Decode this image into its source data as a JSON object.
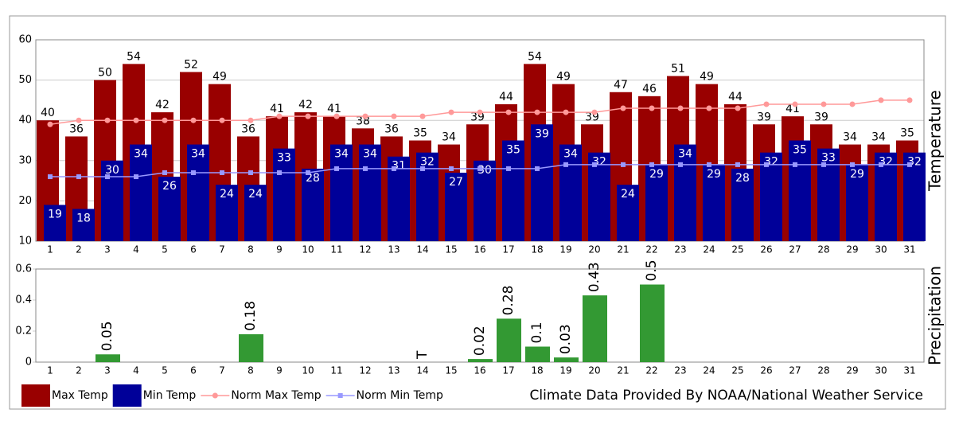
{
  "footer": "Climate Data Provided By NOAA/National Weather Service",
  "chart_data": [
    {
      "type": "bar",
      "y_label": "Temperature",
      "legend": "bottom",
      "grid": true,
      "categories": [
        1,
        2,
        3,
        4,
        5,
        6,
        7,
        8,
        9,
        10,
        11,
        12,
        13,
        14,
        15,
        16,
        17,
        18,
        19,
        20,
        21,
        22,
        23,
        24,
        25,
        26,
        27,
        28,
        29,
        30,
        31
      ],
      "ylim": [
        10,
        60
      ],
      "yticks": [
        10,
        20,
        30,
        40,
        50,
        60
      ],
      "series": [
        {
          "name": "Max Temp",
          "type": "bar",
          "color": "#990000",
          "label_color": "#000000",
          "values": [
            40,
            36,
            50,
            54,
            42,
            52,
            49,
            36,
            41,
            42,
            41,
            38,
            36,
            35,
            34,
            39,
            44,
            54,
            49,
            39,
            47,
            46,
            51,
            49,
            44,
            39,
            41,
            39,
            34,
            34,
            35
          ]
        },
        {
          "name": "Min Temp",
          "type": "bar",
          "color": "#000099",
          "label_color": "#ffffff",
          "values": [
            19,
            18,
            30,
            34,
            26,
            34,
            24,
            24,
            33,
            28,
            34,
            34,
            31,
            32,
            27,
            30,
            35,
            39,
            34,
            32,
            24,
            29,
            34,
            29,
            28,
            32,
            35,
            33,
            29,
            32,
            32
          ]
        },
        {
          "name": "Norm Max Temp",
          "type": "line",
          "marker": "circle",
          "color": "#ff9999",
          "values": [
            39,
            40,
            40,
            40,
            40,
            40,
            40,
            40,
            41,
            41,
            41,
            41,
            41,
            41,
            42,
            42,
            42,
            42,
            42,
            42,
            43,
            43,
            43,
            43,
            43,
            44,
            44,
            44,
            44,
            45,
            45
          ]
        },
        {
          "name": "Norm Min Temp",
          "type": "line",
          "marker": "square",
          "color": "#9999ff",
          "values": [
            26,
            26,
            26,
            26,
            27,
            27,
            27,
            27,
            27,
            27,
            28,
            28,
            28,
            28,
            28,
            28,
            28,
            28,
            29,
            29,
            29,
            29,
            29,
            29,
            29,
            29,
            29,
            29,
            29,
            29,
            29
          ]
        }
      ]
    },
    {
      "type": "bar",
      "y_label": "Precipitation",
      "grid": false,
      "color": "#339933",
      "categories": [
        1,
        2,
        3,
        4,
        5,
        6,
        7,
        8,
        9,
        10,
        11,
        12,
        13,
        14,
        15,
        16,
        17,
        18,
        19,
        20,
        21,
        22,
        23,
        24,
        25,
        26,
        27,
        28,
        29,
        30,
        31
      ],
      "ylim": [
        0,
        0.6
      ],
      "yticks": [
        0,
        0.2,
        0.4,
        0.6
      ],
      "values": [
        0,
        0,
        0.05,
        0,
        0,
        0,
        0,
        0.18,
        0,
        0,
        0,
        0,
        0,
        0,
        0,
        0.02,
        0.28,
        0.1,
        0.03,
        0.43,
        0,
        0.5,
        0,
        0,
        0,
        0,
        0,
        0,
        0,
        0,
        0
      ],
      "value_labels": [
        null,
        null,
        "0.05",
        null,
        null,
        null,
        null,
        "0.18",
        null,
        null,
        null,
        null,
        null,
        "T",
        null,
        "0.02",
        "0.28",
        "0.1",
        "0.03",
        "0.43",
        null,
        "0.5",
        null,
        null,
        null,
        null,
        null,
        null,
        null,
        null,
        null
      ]
    }
  ]
}
